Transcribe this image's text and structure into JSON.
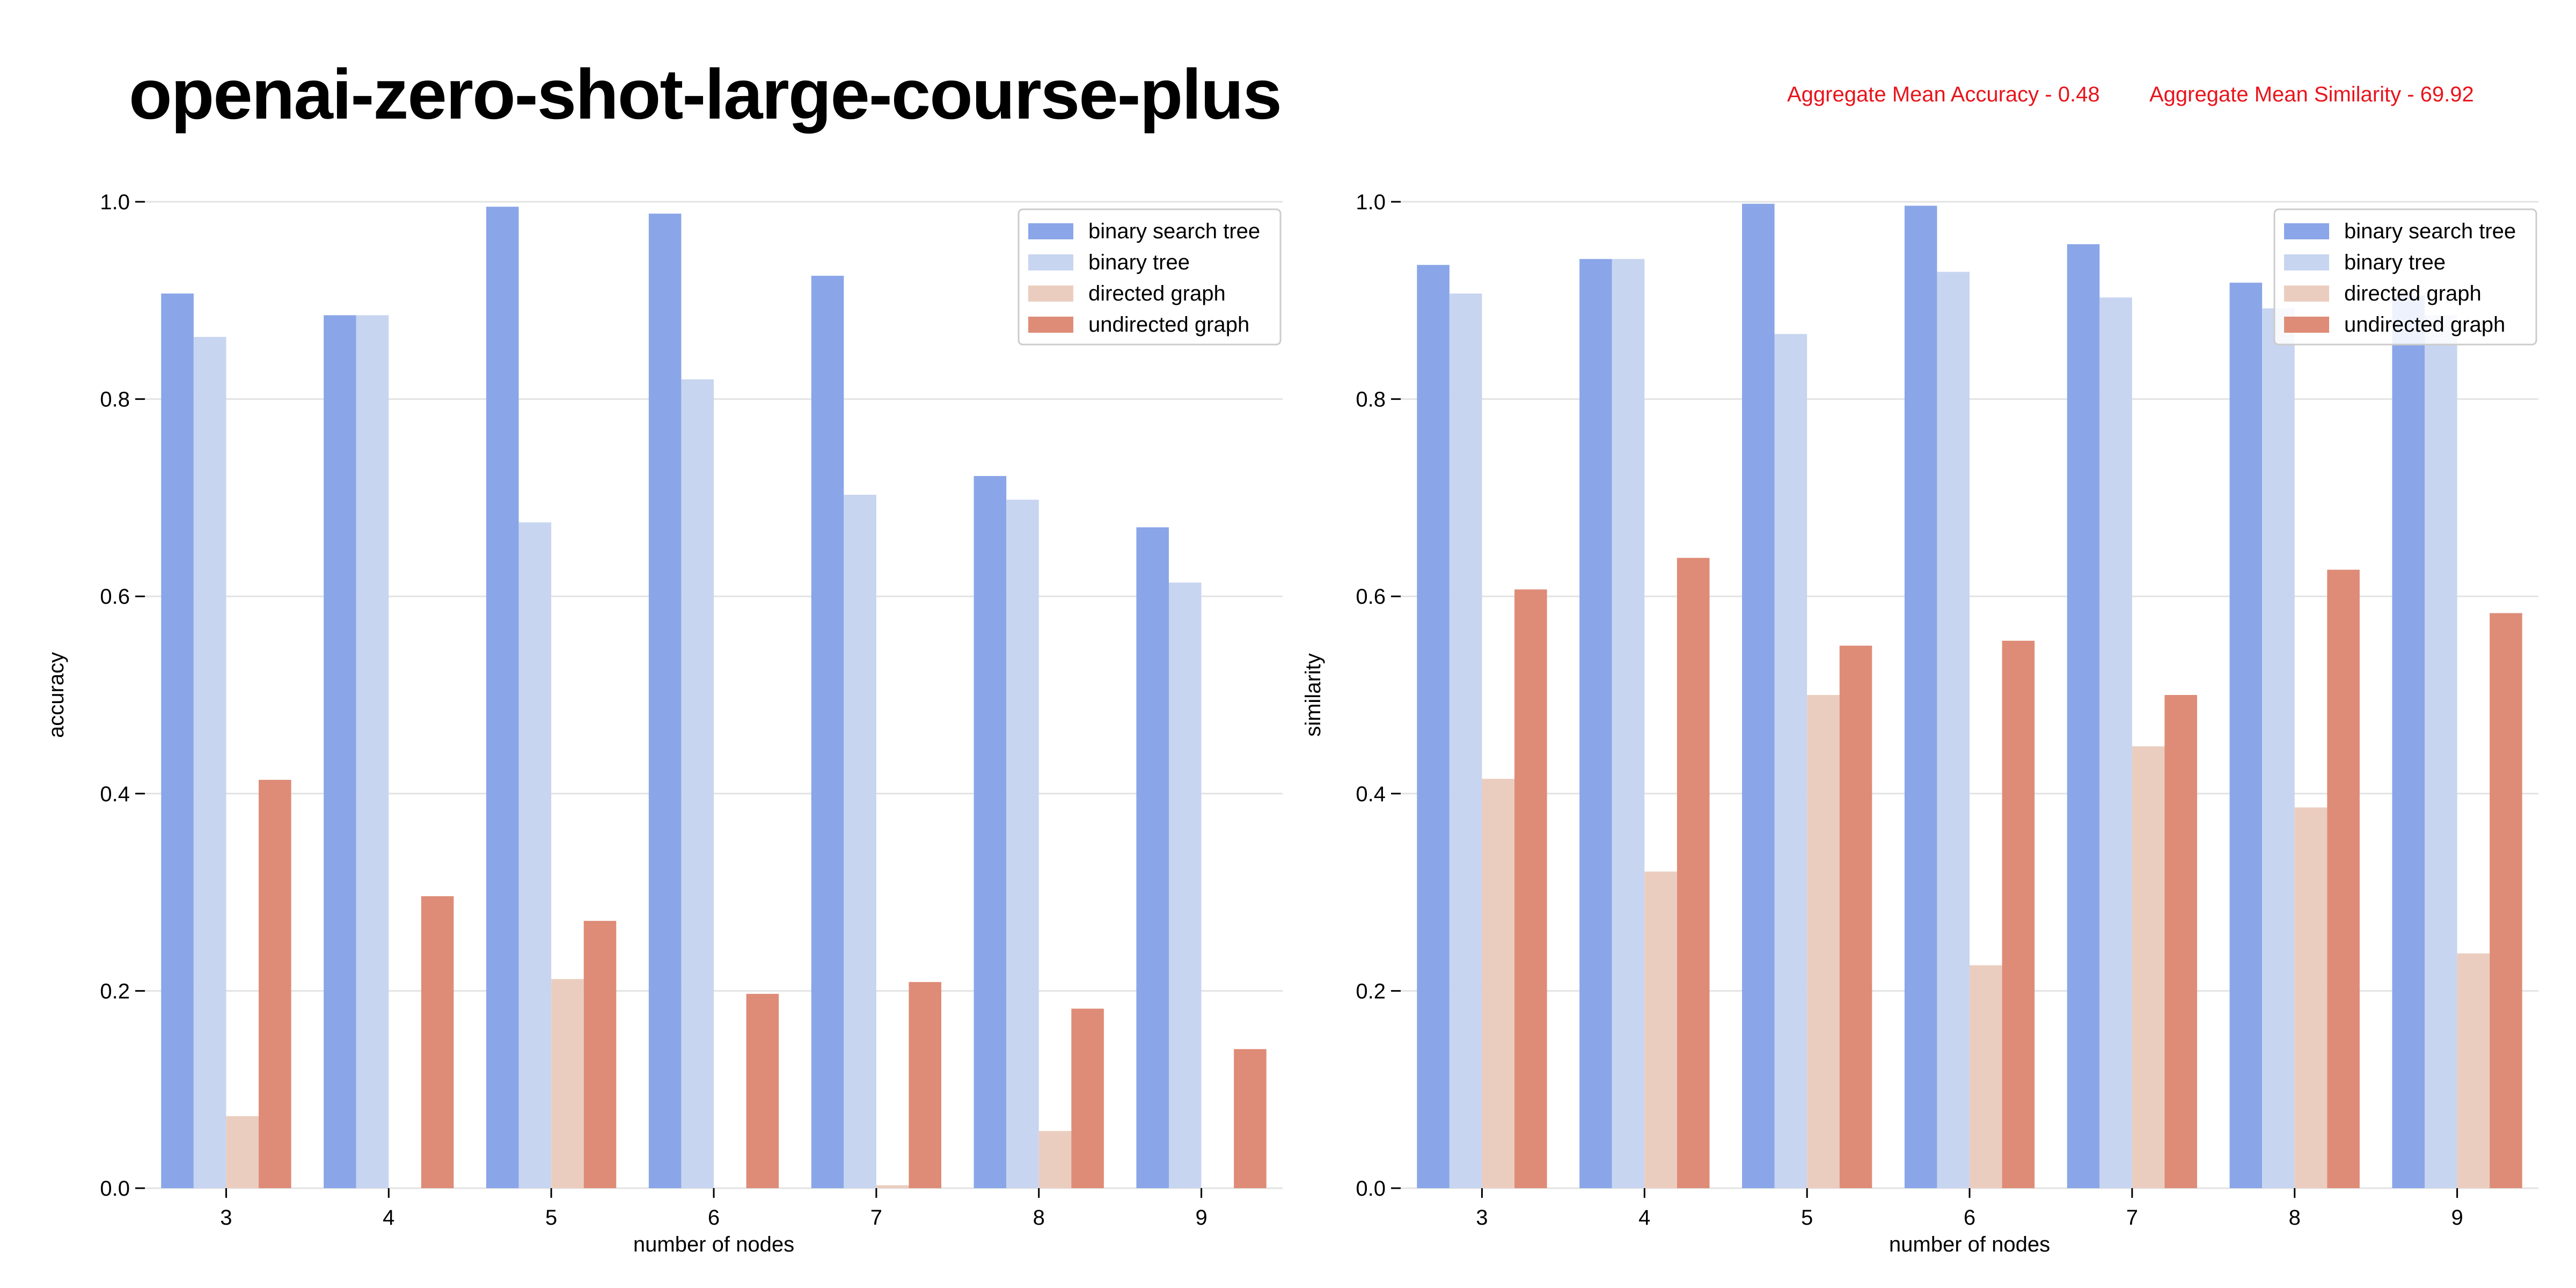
{
  "title": "openai-zero-shot-large-course-plus",
  "aggregate": {
    "accuracy_label": "Aggregate Mean Accuracy - 0.48",
    "similarity_label": "Aggregate Mean Similarity - 69.92"
  },
  "colors": {
    "binary search tree": "#8aa6e8",
    "binary tree": "#c8d5f0",
    "directed graph": "#ebcdbf",
    "undirected graph": "#de8c77",
    "grid": "#e3e3e3",
    "axis": "#000000"
  },
  "chart_data": [
    {
      "type": "bar",
      "xlabel": "number of nodes",
      "ylabel": "accuracy",
      "ylim": [
        0,
        1.0
      ],
      "yticks": [
        "0.0",
        "0.2",
        "0.4",
        "0.6",
        "0.8",
        "1.0"
      ],
      "categories": [
        "3",
        "4",
        "5",
        "6",
        "7",
        "8",
        "9"
      ],
      "grid": true,
      "legend": "top-right",
      "series": [
        {
          "name": "binary search tree",
          "values": [
            0.907,
            0.885,
            0.995,
            0.988,
            0.925,
            0.722,
            0.67
          ]
        },
        {
          "name": "binary tree",
          "values": [
            0.863,
            0.885,
            0.675,
            0.82,
            0.703,
            0.698,
            0.614
          ]
        },
        {
          "name": "directed graph",
          "values": [
            0.073,
            0.0,
            0.212,
            0.0,
            0.003,
            0.058,
            0.0
          ]
        },
        {
          "name": "undirected graph",
          "values": [
            0.414,
            0.296,
            0.271,
            0.197,
            0.209,
            0.182,
            0.141
          ]
        }
      ]
    },
    {
      "type": "bar",
      "xlabel": "number of nodes",
      "ylabel": "similarity",
      "ylim": [
        0,
        1.0
      ],
      "yticks": [
        "0.0",
        "0.2",
        "0.4",
        "0.6",
        "0.8",
        "1.0"
      ],
      "categories": [
        "3",
        "4",
        "5",
        "6",
        "7",
        "8",
        "9"
      ],
      "grid": true,
      "legend": "top-right",
      "series": [
        {
          "name": "binary search tree",
          "values": [
            0.936,
            0.942,
            0.998,
            0.996,
            0.957,
            0.918,
            0.905
          ]
        },
        {
          "name": "binary tree",
          "values": [
            0.907,
            0.942,
            0.866,
            0.929,
            0.903,
            0.892,
            0.885
          ]
        },
        {
          "name": "directed graph",
          "values": [
            0.415,
            0.321,
            0.5,
            0.226,
            0.448,
            0.386,
            0.238
          ]
        },
        {
          "name": "undirected graph",
          "values": [
            0.607,
            0.639,
            0.55,
            0.555,
            0.5,
            0.627,
            0.583
          ]
        }
      ]
    }
  ]
}
